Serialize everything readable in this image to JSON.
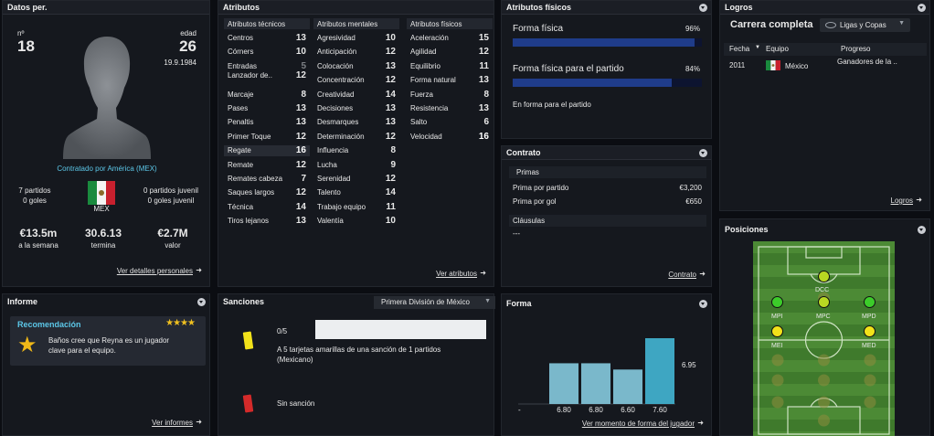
{
  "personal": {
    "title": "Datos per.",
    "number_label": "nº",
    "number": "18",
    "age_label": "edad",
    "age": "26",
    "dob": "19.9.1984",
    "contracted": "Contratado por América (MEX)",
    "matches": "7 partidos",
    "goals": "0 goles",
    "nation": "MEX",
    "youth_matches": "0 partidos juvenil",
    "youth_goals": "0 goles juvenil",
    "wage": "€13.5m",
    "wage_label": "a la semana",
    "expires": "30.6.13",
    "expires_label": "termina",
    "value": "€2.7M",
    "value_label": "valor",
    "link": "Ver detalles personales"
  },
  "attributes": {
    "title": "Atributos",
    "technical_header": "Atributos técnicos",
    "mental_header": "Atributos mentales",
    "physical_header": "Atributos físicos",
    "technical": [
      {
        "name": "Centros",
        "value": "13"
      },
      {
        "name": "Córners",
        "value": "10"
      },
      {
        "name": "Entradas",
        "value": "5"
      },
      {
        "name": "Lanzador de..",
        "value": "12"
      },
      {
        "name": "Marcaje",
        "value": "8"
      },
      {
        "name": "Pases",
        "value": "13"
      },
      {
        "name": "Penaltis",
        "value": "13"
      },
      {
        "name": "Primer Toque",
        "value": "12"
      },
      {
        "name": "Regate",
        "value": "16"
      },
      {
        "name": "Remate",
        "value": "12"
      },
      {
        "name": "Remates cabeza",
        "value": "7"
      },
      {
        "name": "Saques largos",
        "value": "12"
      },
      {
        "name": "Técnica",
        "value": "14"
      },
      {
        "name": "Tiros lejanos",
        "value": "13"
      }
    ],
    "mental": [
      {
        "name": "Agresividad",
        "value": "10"
      },
      {
        "name": "Anticipación",
        "value": "12"
      },
      {
        "name": "Colocación",
        "value": "13"
      },
      {
        "name": "Concentración",
        "value": "12"
      },
      {
        "name": "Creatividad",
        "value": "14"
      },
      {
        "name": "Decisiones",
        "value": "13"
      },
      {
        "name": "Desmarques",
        "value": "13"
      },
      {
        "name": "Determinación",
        "value": "12"
      },
      {
        "name": "Influencia",
        "value": "8"
      },
      {
        "name": "Lucha",
        "value": "9"
      },
      {
        "name": "Serenidad",
        "value": "12"
      },
      {
        "name": "Talento",
        "value": "14"
      },
      {
        "name": "Trabajo equipo",
        "value": "11"
      },
      {
        "name": "Valentía",
        "value": "10"
      }
    ],
    "physical": [
      {
        "name": "Aceleración",
        "value": "15"
      },
      {
        "name": "Agilidad",
        "value": "12"
      },
      {
        "name": "Equilibrio",
        "value": "11"
      },
      {
        "name": "Forma natural",
        "value": "13"
      },
      {
        "name": "Fuerza",
        "value": "8"
      },
      {
        "name": "Resistencia",
        "value": "13"
      },
      {
        "name": "Salto",
        "value": "6"
      },
      {
        "name": "Velocidad",
        "value": "16"
      }
    ],
    "link": "Ver atributos"
  },
  "physical_panel": {
    "title": "Atributos físicos",
    "fitness_label": "Forma física",
    "fitness_value": "96%",
    "fitness_level": 0.96,
    "match_fitness_label": "Forma física para el partido",
    "match_fitness_value": "84%",
    "match_fitness_level": 0.84,
    "status": "En forma para el partido"
  },
  "contract": {
    "title": "Contrato",
    "bonuses_header": "Primas",
    "appearance_label": "Prima por partido",
    "appearance_value": "€3,200",
    "goal_label": "Prima por gol",
    "goal_value": "€650",
    "clauses_header": "Cláusulas",
    "clauses_value": "---",
    "link": "Contrato"
  },
  "achievements": {
    "title": "Logros",
    "career": "Carrera completa",
    "filter": "Ligas y Copas",
    "col_date": "Fecha",
    "col_team": "Equipo",
    "col_progress": "Progreso",
    "row_date": "2011",
    "row_team": "México",
    "row_progress": "Ganadores de la ..",
    "link": "Logros"
  },
  "positions": {
    "title": "Posiciones",
    "labels": [
      "DCC",
      "MPI",
      "MPC",
      "MPD",
      "MEI",
      "MED"
    ]
  },
  "report": {
    "title": "Informe",
    "rec_title": "Recomendación",
    "stars": "★★★★",
    "text_line1": "Baños cree que Reyna es un jugador",
    "text_line2": "clave para el equipo.",
    "link": "Ver informes"
  },
  "sanctions": {
    "title": "Sanciones",
    "competition": "Primera División de México",
    "count": "0/5",
    "yellow_line1": "A 5 tarjetas amarillas de una sanción de 1 partidos",
    "yellow_line2": "(Mexicano)",
    "red_text": "Sin sanción"
  },
  "form": {
    "title": "Forma",
    "link": "Ver momento de forma del jugador",
    "dash": "-",
    "ratings": [
      "6.80",
      "6.80",
      "6.60",
      "7.60"
    ],
    "average": "6.95"
  },
  "colors": {
    "accent": "#5cc7e8",
    "bar_fill": "#1f3c8a",
    "form_bar": "#7ab8cb",
    "form_bar_last": "#3ea6c2",
    "pitch": "#3f7a2c",
    "green_dot": "#3ccc2a",
    "yellow_green_dot": "#b8d822",
    "yellow_dot": "#f2e21a"
  },
  "chart_data": {
    "type": "bar",
    "categories": [
      "",
      "",
      "",
      "",
      ""
    ],
    "values": [
      null,
      6.8,
      6.8,
      6.6,
      7.6
    ],
    "title": "",
    "xlabel": "",
    "ylabel": ""
  }
}
